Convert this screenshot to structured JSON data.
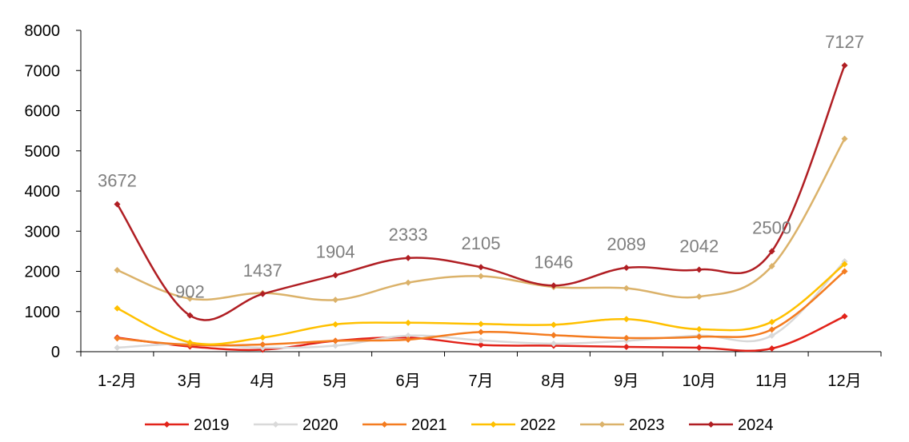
{
  "chart_data": {
    "type": "line",
    "categories": [
      "1-2月",
      "3月",
      "4月",
      "5月",
      "6月",
      "7月",
      "8月",
      "9月",
      "10月",
      "11月",
      "12月"
    ],
    "ylim": [
      0,
      8000
    ],
    "yticks": [
      "0",
      "1000",
      "2000",
      "3000",
      "4000",
      "5000",
      "6000",
      "7000",
      "8000"
    ],
    "smooth": true,
    "grid": false,
    "legend_position": "bottom",
    "series": [
      {
        "name": "2019",
        "color": "#e2231a",
        "values": [
          350,
          130,
          50,
          270,
          350,
          170,
          150,
          120,
          100,
          80,
          880
        ]
      },
      {
        "name": "2020",
        "color": "#d9d9d9",
        "values": [
          100,
          200,
          100,
          150,
          400,
          280,
          200,
          270,
          400,
          400,
          2250
        ]
      },
      {
        "name": "2021",
        "color": "#f47c20",
        "values": [
          330,
          170,
          180,
          270,
          300,
          490,
          410,
          340,
          370,
          550,
          2000
        ]
      },
      {
        "name": "2022",
        "color": "#ffc000",
        "values": [
          1080,
          230,
          350,
          680,
          720,
          690,
          670,
          810,
          560,
          740,
          2180
        ]
      },
      {
        "name": "2023",
        "color": "#dbb26a",
        "values": [
          2030,
          1320,
          1460,
          1290,
          1720,
          1880,
          1610,
          1580,
          1370,
          2130,
          5300
        ]
      },
      {
        "name": "2024",
        "color": "#b01e23",
        "values": [
          3672,
          902,
          1437,
          1904,
          2333,
          2105,
          1646,
          2089,
          2042,
          2500,
          7127
        ],
        "data_labels": [
          "3672",
          "902",
          "1437",
          "1904",
          "2333",
          "2105",
          "1646",
          "2089",
          "2042",
          "2500",
          "7127"
        ]
      }
    ]
  }
}
